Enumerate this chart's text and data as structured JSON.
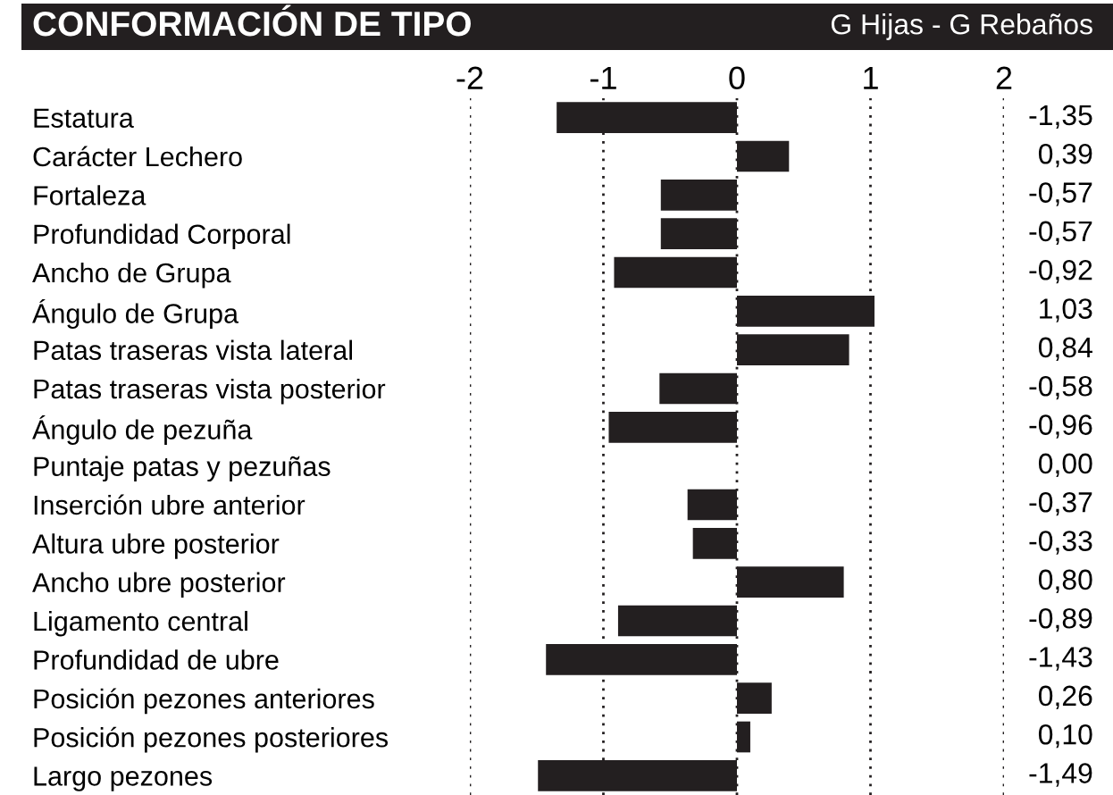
{
  "chart_data": {
    "type": "bar",
    "orientation": "horizontal",
    "title": "CONFORMACIÓN DE TIPO",
    "subtitle": "G Hijas - G Rebaños",
    "categories": [
      "Estatura",
      "Carácter Lechero",
      "Fortaleza",
      "Profundidad Corporal",
      "Ancho de Grupa",
      "Ángulo de Grupa",
      "Patas traseras vista lateral",
      "Patas traseras vista posterior",
      "Ángulo de pezuña",
      "Puntaje patas y pezuñas",
      "Inserción ubre anterior",
      "Altura ubre posterior",
      "Ancho ubre posterior",
      "Ligamento central",
      "Profundidad de ubre",
      "Posición pezones anteriores",
      "Posición pezones posteriores",
      "Largo pezones"
    ],
    "values": [
      -1.35,
      0.39,
      -0.57,
      -0.57,
      -0.92,
      1.03,
      0.84,
      -0.58,
      -0.96,
      0.0,
      -0.37,
      -0.33,
      0.8,
      -0.89,
      -1.43,
      0.26,
      0.1,
      -1.49
    ],
    "value_labels": [
      "-1,35",
      "0,39",
      "-0,57",
      "-0,57",
      "-0,92",
      "1,03",
      "0,84",
      "-0,58",
      "-0,96",
      "0,00",
      "-0,37",
      "-0,33",
      "0,80",
      "-0,89",
      "-1,43",
      "0,26",
      "0,10",
      "-1,49"
    ],
    "color": "#231f20",
    "xlim": [
      -2,
      2
    ],
    "xticks": [
      -2,
      -1,
      0,
      1,
      2
    ],
    "grid": "x"
  }
}
